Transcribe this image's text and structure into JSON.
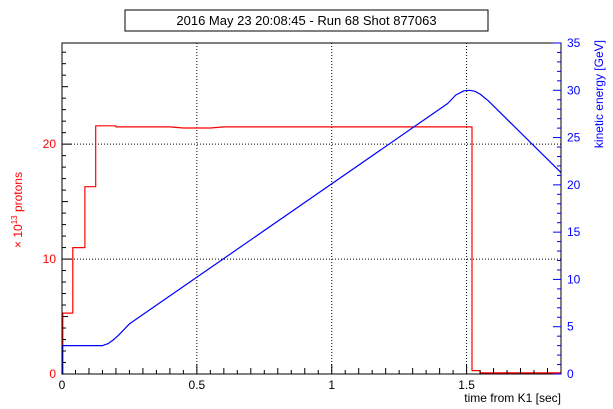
{
  "chart_data": {
    "type": "line",
    "title": "2016 May 23 20:08:45 - Run 68 Shot 877063",
    "xlabel": "time from K1 [sec]",
    "ylabel_left": {
      "prefix": "× 10",
      "exponent": "13",
      "suffix": " protons"
    },
    "ylabel_right": "kinetic energy [GeV]",
    "xlim": [
      0,
      1.85
    ],
    "ylim_left": [
      0,
      28.8
    ],
    "ylim_right": [
      0,
      35
    ],
    "grid": true,
    "legend": "none",
    "x_ticks": [
      {
        "value": 0,
        "label": "0"
      },
      {
        "value": 0.5,
        "label": "0.5"
      },
      {
        "value": 1,
        "label": "1"
      },
      {
        "value": 1.5,
        "label": "1.5"
      }
    ],
    "y_left_ticks": [
      {
        "value": 0,
        "label": "0"
      },
      {
        "value": 10,
        "label": "10"
      },
      {
        "value": 20,
        "label": "20"
      }
    ],
    "y_right_ticks": [
      {
        "value": 0,
        "label": "0"
      },
      {
        "value": 5,
        "label": "5"
      },
      {
        "value": 10,
        "label": "10"
      },
      {
        "value": 15,
        "label": "15"
      },
      {
        "value": 20,
        "label": "20"
      },
      {
        "value": 25,
        "label": "25"
      },
      {
        "value": 30,
        "label": "30"
      },
      {
        "value": 35,
        "label": "35"
      }
    ],
    "series": [
      {
        "axis": "left",
        "color": "#ff0000",
        "style": "step",
        "points": [
          [
            0,
            0
          ],
          [
            0.003,
            0
          ],
          [
            0.003,
            5.3
          ],
          [
            0.04,
            5.3
          ],
          [
            0.04,
            11.0
          ],
          [
            0.085,
            11.0
          ],
          [
            0.085,
            16.3
          ],
          [
            0.125,
            16.3
          ],
          [
            0.125,
            21.6
          ],
          [
            0.2,
            21.6
          ],
          [
            0.2,
            21.5
          ],
          [
            0.4,
            21.5
          ],
          [
            0.45,
            21.4
          ],
          [
            0.55,
            21.4
          ],
          [
            0.6,
            21.5
          ],
          [
            1.52,
            21.5
          ],
          [
            1.52,
            0.3
          ],
          [
            1.55,
            0.3
          ],
          [
            1.55,
            0.1
          ],
          [
            1.85,
            0.1
          ]
        ]
      },
      {
        "axis": "right",
        "color": "#0000ff",
        "style": "line",
        "points": [
          [
            0,
            0
          ],
          [
            0.002,
            0
          ],
          [
            0.002,
            3.0
          ],
          [
            0.15,
            3.0
          ],
          [
            0.17,
            3.2
          ],
          [
            0.19,
            3.6
          ],
          [
            0.21,
            4.1
          ],
          [
            0.23,
            4.7
          ],
          [
            0.25,
            5.3
          ],
          [
            1.43,
            28.6
          ],
          [
            1.46,
            29.5
          ],
          [
            1.49,
            29.95
          ],
          [
            1.51,
            30.0
          ],
          [
            1.53,
            29.9
          ],
          [
            1.55,
            29.6
          ],
          [
            1.58,
            28.9
          ],
          [
            1.85,
            21.3
          ]
        ]
      }
    ]
  }
}
